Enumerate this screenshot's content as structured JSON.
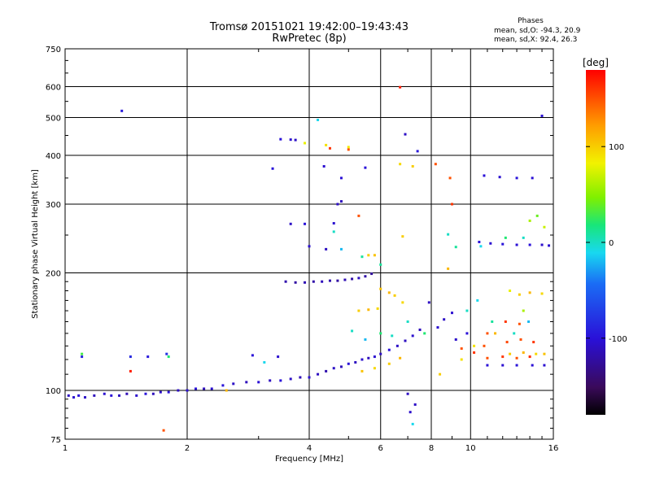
{
  "chart_data": {
    "type": "scatter",
    "title": "Tromsø 20151021 19:42:00–19:43:43",
    "subtitle": "RwPretec (8p)",
    "xlabel": "Frequency [MHz]",
    "ylabel": "Stationary phase Virtual Height [km]",
    "x_scale": "log",
    "y_scale": "log",
    "xlim": [
      1,
      16
    ],
    "ylim": [
      75,
      750
    ],
    "x_ticks": [
      1,
      2,
      4,
      6,
      8,
      10,
      16
    ],
    "y_ticks": [
      75,
      100,
      200,
      300,
      400,
      500,
      600,
      750
    ],
    "grid": true,
    "phases_box": {
      "title": "Phases",
      "line1": "mean, sd,O: -94.3, 20.9",
      "line2": "mean, sd,X:  92.4, 26.3"
    },
    "colorbar": {
      "label": "[deg]",
      "range": [
        -180,
        180
      ],
      "ticks": [
        100,
        0,
        -100
      ]
    },
    "series": [
      {
        "points": [
          [
            1.02,
            97,
            -110
          ],
          [
            1.05,
            96,
            -105
          ],
          [
            1.08,
            97,
            -100
          ],
          [
            1.12,
            96,
            -108
          ],
          [
            1.18,
            97,
            -112
          ],
          [
            1.25,
            98,
            -104
          ],
          [
            1.3,
            97,
            -100
          ],
          [
            1.36,
            97,
            -110
          ],
          [
            1.42,
            98,
            -115
          ],
          [
            1.5,
            97,
            -105
          ],
          [
            1.58,
            98,
            -98
          ],
          [
            1.65,
            98,
            -112
          ],
          [
            1.72,
            99,
            -108
          ],
          [
            1.8,
            99,
            -100
          ],
          [
            1.9,
            100,
            -110
          ],
          [
            2.0,
            100,
            -105
          ],
          [
            2.1,
            101,
            -100
          ],
          [
            2.2,
            101,
            -112
          ],
          [
            2.3,
            101,
            -104
          ],
          [
            2.45,
            103,
            -98
          ],
          [
            2.6,
            104,
            -108
          ],
          [
            2.8,
            105,
            -112
          ],
          [
            3.0,
            105,
            -102
          ],
          [
            3.2,
            106,
            -110
          ],
          [
            3.4,
            106,
            -100
          ],
          [
            3.6,
            107,
            -108
          ],
          [
            3.8,
            108,
            -115
          ],
          [
            4.0,
            108,
            -105
          ],
          [
            4.2,
            110,
            -110
          ],
          [
            4.4,
            112,
            -118
          ],
          [
            4.6,
            114,
            -108
          ],
          [
            4.8,
            115,
            -112
          ],
          [
            5.0,
            117,
            -100
          ],
          [
            5.2,
            118,
            -110
          ],
          [
            5.4,
            120,
            -105
          ],
          [
            5.6,
            121,
            -112
          ],
          [
            5.8,
            122,
            -104
          ],
          [
            6.0,
            124,
            -110
          ],
          [
            6.3,
            127,
            -100
          ],
          [
            6.6,
            130,
            -108
          ],
          [
            6.9,
            134,
            -110
          ],
          [
            7.2,
            138,
            -105
          ],
          [
            7.5,
            143,
            -112
          ],
          [
            1.1,
            122,
            -90
          ],
          [
            1.45,
            122,
            -85
          ],
          [
            1.6,
            122,
            -95
          ],
          [
            1.78,
            124,
            -80
          ],
          [
            2.9,
            123,
            -100
          ],
          [
            3.35,
            122,
            -105
          ],
          [
            3.5,
            190,
            -118
          ],
          [
            3.7,
            189,
            -122
          ],
          [
            3.9,
            189,
            -115
          ],
          [
            4.1,
            190,
            -120
          ],
          [
            4.3,
            190,
            -112
          ],
          [
            4.5,
            191,
            -118
          ],
          [
            4.7,
            191,
            -122
          ],
          [
            4.9,
            192,
            -115
          ],
          [
            5.1,
            193,
            -120
          ],
          [
            5.3,
            194,
            -110
          ],
          [
            5.5,
            196,
            -120
          ],
          [
            5.7,
            199,
            -125
          ],
          [
            3.6,
            267,
            -108
          ],
          [
            3.9,
            267,
            -100
          ],
          [
            4.0,
            234,
            -105
          ],
          [
            4.4,
            230,
            -110
          ],
          [
            4.8,
            305,
            -112
          ],
          [
            4.7,
            300,
            -108
          ],
          [
            4.6,
            268,
            -104
          ],
          [
            3.4,
            440,
            -100
          ],
          [
            3.6,
            439,
            -105
          ],
          [
            3.7,
            438,
            -108
          ],
          [
            10.5,
            240,
            -100
          ],
          [
            11.2,
            238,
            -104
          ],
          [
            12.0,
            237,
            -98
          ],
          [
            13.0,
            236,
            -102
          ],
          [
            14.0,
            236,
            -100
          ],
          [
            15.0,
            236,
            -106
          ],
          [
            15.6,
            235,
            -104
          ],
          [
            10.8,
            355,
            -100
          ],
          [
            11.8,
            352,
            -104
          ],
          [
            13.0,
            350,
            -98
          ],
          [
            14.2,
            350,
            -102
          ],
          [
            11.0,
            116,
            -100
          ],
          [
            12.0,
            116,
            -104
          ],
          [
            13.0,
            116,
            -98
          ],
          [
            14.2,
            116,
            -102
          ],
          [
            15.2,
            116,
            -104
          ],
          [
            8.6,
            152,
            -108
          ],
          [
            9.0,
            158,
            -104
          ],
          [
            7.9,
            168,
            -110
          ],
          [
            8.3,
            145,
            -104
          ],
          [
            9.2,
            135,
            -106
          ],
          [
            9.8,
            140,
            -100
          ],
          [
            1.38,
            520,
            -95
          ],
          [
            15.0,
            505,
            -102
          ],
          [
            7.0,
            98,
            -110
          ],
          [
            7.3,
            92,
            -108
          ],
          [
            7.1,
            88,
            -106
          ],
          [
            3.25,
            370,
            -98
          ],
          [
            4.35,
            375,
            -104
          ],
          [
            4.8,
            350,
            -102
          ],
          [
            5.5,
            372,
            -100
          ],
          [
            6.9,
            453,
            -108
          ],
          [
            7.4,
            410,
            -96
          ]
        ]
      },
      {
        "points": [
          [
            5.3,
            160,
            100
          ],
          [
            5.6,
            161,
            110
          ],
          [
            5.9,
            162,
            95
          ],
          [
            5.4,
            112,
            105
          ],
          [
            5.8,
            114,
            95
          ],
          [
            6.3,
            117,
            100
          ],
          [
            6.7,
            121,
            110
          ],
          [
            6.0,
            182,
            105
          ],
          [
            6.3,
            178,
            110
          ],
          [
            6.5,
            175,
            100
          ],
          [
            6.8,
            168,
            95
          ],
          [
            12.5,
            124,
            100
          ],
          [
            13.5,
            125,
            110
          ],
          [
            14.5,
            124,
            95
          ],
          [
            15.2,
            124,
            105
          ],
          [
            13.2,
            176,
            100
          ],
          [
            14.0,
            178,
            110
          ],
          [
            15.0,
            177,
            95
          ],
          [
            5.6,
            222,
            100
          ],
          [
            5.8,
            222,
            105
          ],
          [
            6.8,
            248,
            100
          ],
          [
            8.8,
            205,
            110
          ],
          [
            3.9,
            430,
            80
          ],
          [
            4.4,
            425,
            90
          ],
          [
            5.0,
            420,
            85
          ],
          [
            6.7,
            380,
            95
          ],
          [
            7.2,
            375,
            100
          ],
          [
            14.0,
            272,
            60
          ],
          [
            14.6,
            280,
            40
          ],
          [
            15.2,
            262,
            70
          ],
          [
            12.5,
            180,
            80
          ],
          [
            13.5,
            160,
            60
          ],
          [
            2.5,
            100,
            110
          ],
          [
            8.4,
            110,
            100
          ],
          [
            9.5,
            120,
            90
          ],
          [
            10.2,
            130,
            90
          ],
          [
            11.5,
            140,
            110
          ]
        ]
      },
      {
        "points": [
          [
            4.5,
            417,
            160
          ],
          [
            5.0,
            414,
            150
          ],
          [
            8.2,
            380,
            150
          ],
          [
            8.9,
            350,
            150
          ],
          [
            6.7,
            598,
            170
          ],
          [
            5.3,
            280,
            150
          ],
          [
            9.0,
            300,
            160
          ],
          [
            11.0,
            121,
            150
          ],
          [
            12.0,
            122,
            160
          ],
          [
            13.0,
            121,
            150
          ],
          [
            14.0,
            122,
            165
          ],
          [
            9.5,
            128,
            150
          ],
          [
            10.2,
            125,
            160
          ],
          [
            10.8,
            130,
            150
          ],
          [
            12.3,
            133,
            155
          ],
          [
            13.3,
            135,
            150
          ],
          [
            14.3,
            133,
            160
          ],
          [
            1.45,
            112,
            170
          ],
          [
            1.75,
            79,
            150
          ],
          [
            11.0,
            140,
            150
          ],
          [
            12.2,
            150,
            160
          ],
          [
            13.2,
            148,
            150
          ]
        ]
      },
      {
        "points": [
          [
            5.1,
            142,
            0
          ],
          [
            5.5,
            135,
            -20
          ],
          [
            6.0,
            140,
            20
          ],
          [
            6.4,
            138,
            0
          ],
          [
            8.8,
            251,
            0
          ],
          [
            9.2,
            233,
            10
          ],
          [
            10.6,
            234,
            -10
          ],
          [
            12.2,
            246,
            20
          ],
          [
            13.5,
            246,
            0
          ],
          [
            4.2,
            493,
            -10
          ],
          [
            4.8,
            230,
            -20
          ],
          [
            6.0,
            210,
            10
          ],
          [
            7.0,
            150,
            0
          ],
          [
            7.7,
            140,
            20
          ],
          [
            9.8,
            160,
            0
          ],
          [
            10.4,
            170,
            -10
          ],
          [
            11.3,
            150,
            10
          ],
          [
            12.8,
            140,
            0
          ],
          [
            13.9,
            150,
            -20
          ],
          [
            1.1,
            124,
            30
          ],
          [
            1.8,
            122,
            20
          ],
          [
            3.1,
            118,
            -10
          ],
          [
            7.2,
            82,
            -10
          ],
          [
            4.6,
            255,
            0
          ],
          [
            5.4,
            220,
            10
          ]
        ]
      }
    ]
  }
}
